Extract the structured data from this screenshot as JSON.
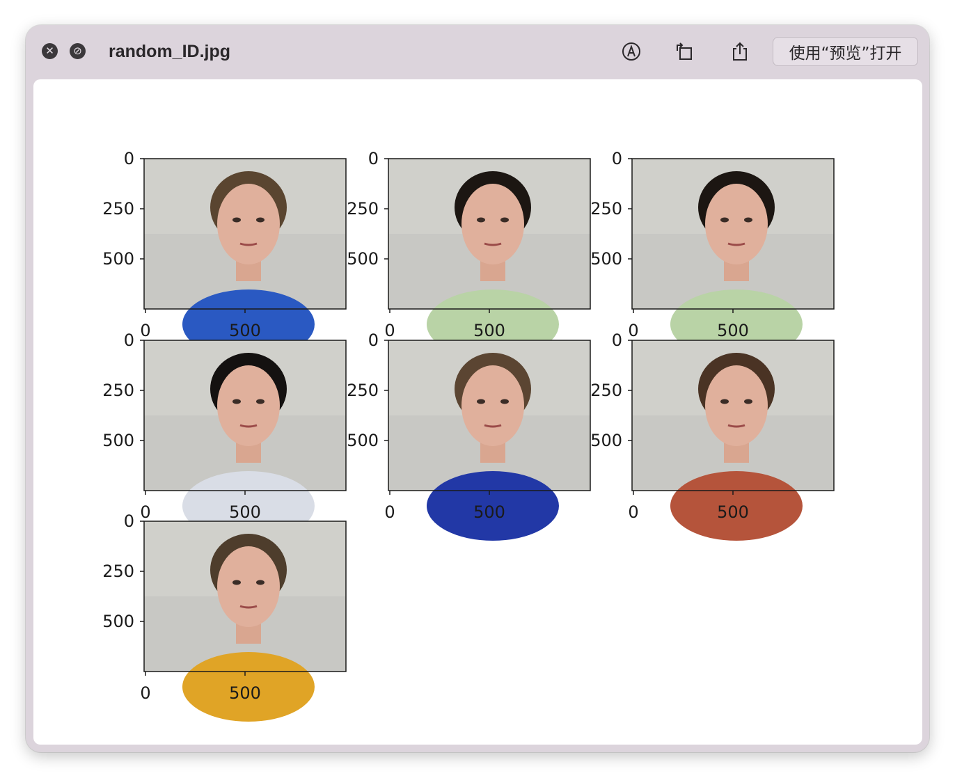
{
  "window": {
    "title": "random_ID.jpg",
    "open_with_label": "使用“预览”打开",
    "toolbar_icons": [
      "close-icon",
      "fullscreen-icon",
      "markup-icon",
      "rotate-icon",
      "share-icon"
    ]
  },
  "figure": {
    "y_ticks": [
      "0",
      "250",
      "500"
    ],
    "x_ticks": [
      "0",
      "500"
    ],
    "panels": [
      {
        "subject": "young man, brown hair, blue shirt",
        "shirt": "#2a59c2",
        "hair": "#5a4530"
      },
      {
        "subject": "young woman smiling, dark hair, light green top",
        "shirt": "#b9d3a6",
        "hair": "#1c1612"
      },
      {
        "subject": "young woman frowning, dark hair, light green top",
        "shirt": "#b9d3a6",
        "hair": "#1c1612"
      },
      {
        "subject": "young woman frowning, long black hair, light top",
        "shirt": "#d9dde6",
        "hair": "#141110"
      },
      {
        "subject": "young man surprised, short hair, blue shirt",
        "shirt": "#2238a6",
        "hair": "#5b4532"
      },
      {
        "subject": "young woman disgusted, hairband, rust top",
        "shirt": "#b5543b",
        "hair": "#4a3324"
      },
      {
        "subject": "young man, receding hair, yellow shirt",
        "shirt": "#e0a426",
        "hair": "#4e3d2c"
      }
    ]
  }
}
